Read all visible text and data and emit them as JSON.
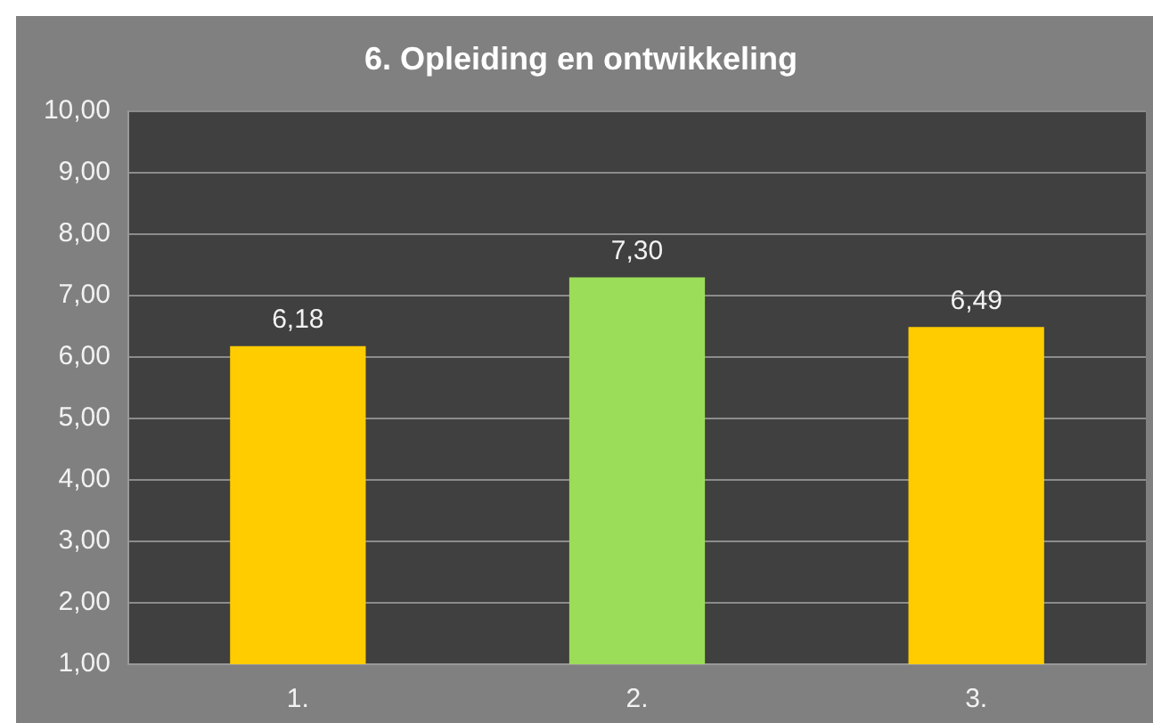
{
  "chart_data": {
    "type": "bar",
    "title": "6. Opleiding en ontwikkeling",
    "categories": [
      "1.",
      "2.",
      "3."
    ],
    "values": [
      6.18,
      7.3,
      6.49
    ],
    "colors": [
      "#ffcc00",
      "#9bdc58",
      "#ffcc00"
    ],
    "value_labels": [
      "6,18",
      "7,30",
      "6,49"
    ],
    "ylim": [
      1,
      10
    ],
    "yticks": [
      {
        "value": 1,
        "label": "1,00"
      },
      {
        "value": 2,
        "label": "2,00"
      },
      {
        "value": 3,
        "label": "3,00"
      },
      {
        "value": 4,
        "label": "4,00"
      },
      {
        "value": 5,
        "label": "5,00"
      },
      {
        "value": 6,
        "label": "6,00"
      },
      {
        "value": 7,
        "label": "7,00"
      },
      {
        "value": 8,
        "label": "8,00"
      },
      {
        "value": 9,
        "label": "9,00"
      },
      {
        "value": 10,
        "label": "10,00"
      }
    ],
    "grid": "y"
  }
}
